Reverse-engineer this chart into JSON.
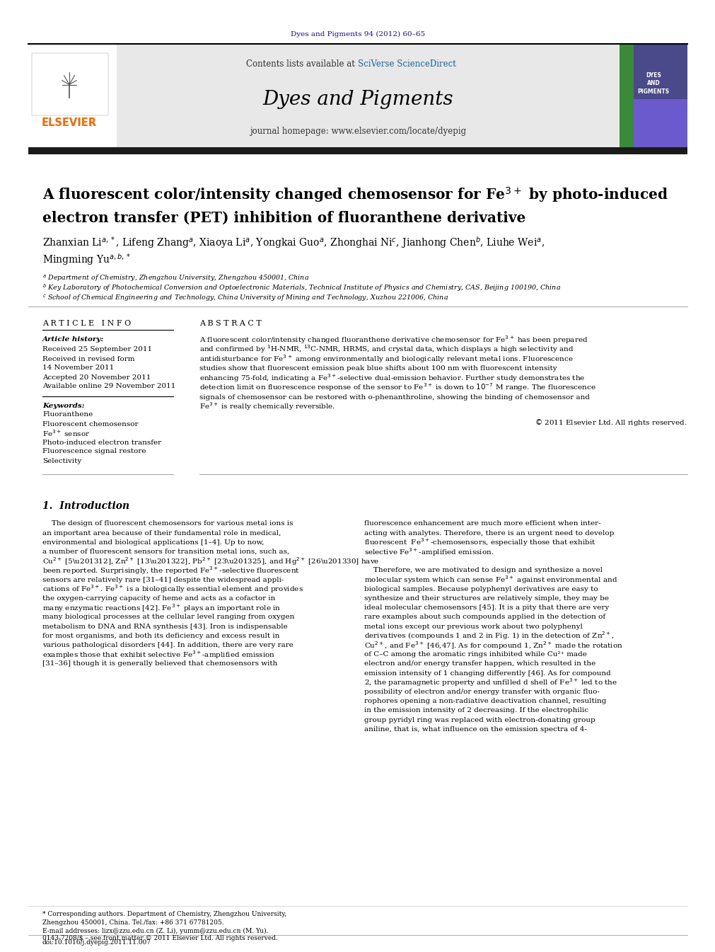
{
  "page_bg": "#ffffff",
  "top_journal_ref": "Dyes and Pigments 94 (2012) 60–65",
  "top_journal_ref_color": "#1a0dab",
  "header_bg": "#e8e8e8",
  "header_sciverse_color": "#1a6496",
  "journal_title": "Dyes and Pigments",
  "journal_homepage": "journal homepage: www.elsevier.com/locate/dyepig",
  "black_bar_color": "#1a1a1a",
  "received1": "Received 25 September 2011",
  "received2": "Received in revised form",
  "received3": "14 November 2011",
  "accepted": "Accepted 20 November 2011",
  "available": "Available online 29 November 2011",
  "kw1": "Fluoranthene",
  "kw2": "Fluorescent chemosensor",
  "kw4": "Photo-induced electron transfer",
  "kw5": "Fluorescence signal restore",
  "kw6": "Selectivity",
  "footer_line1": "0143-7208/$ – see front matter © 2011 Elsevier Ltd. All rights reserved.",
  "footer_line2": "doi:10.1016/j.dyepig.2011.11.007"
}
